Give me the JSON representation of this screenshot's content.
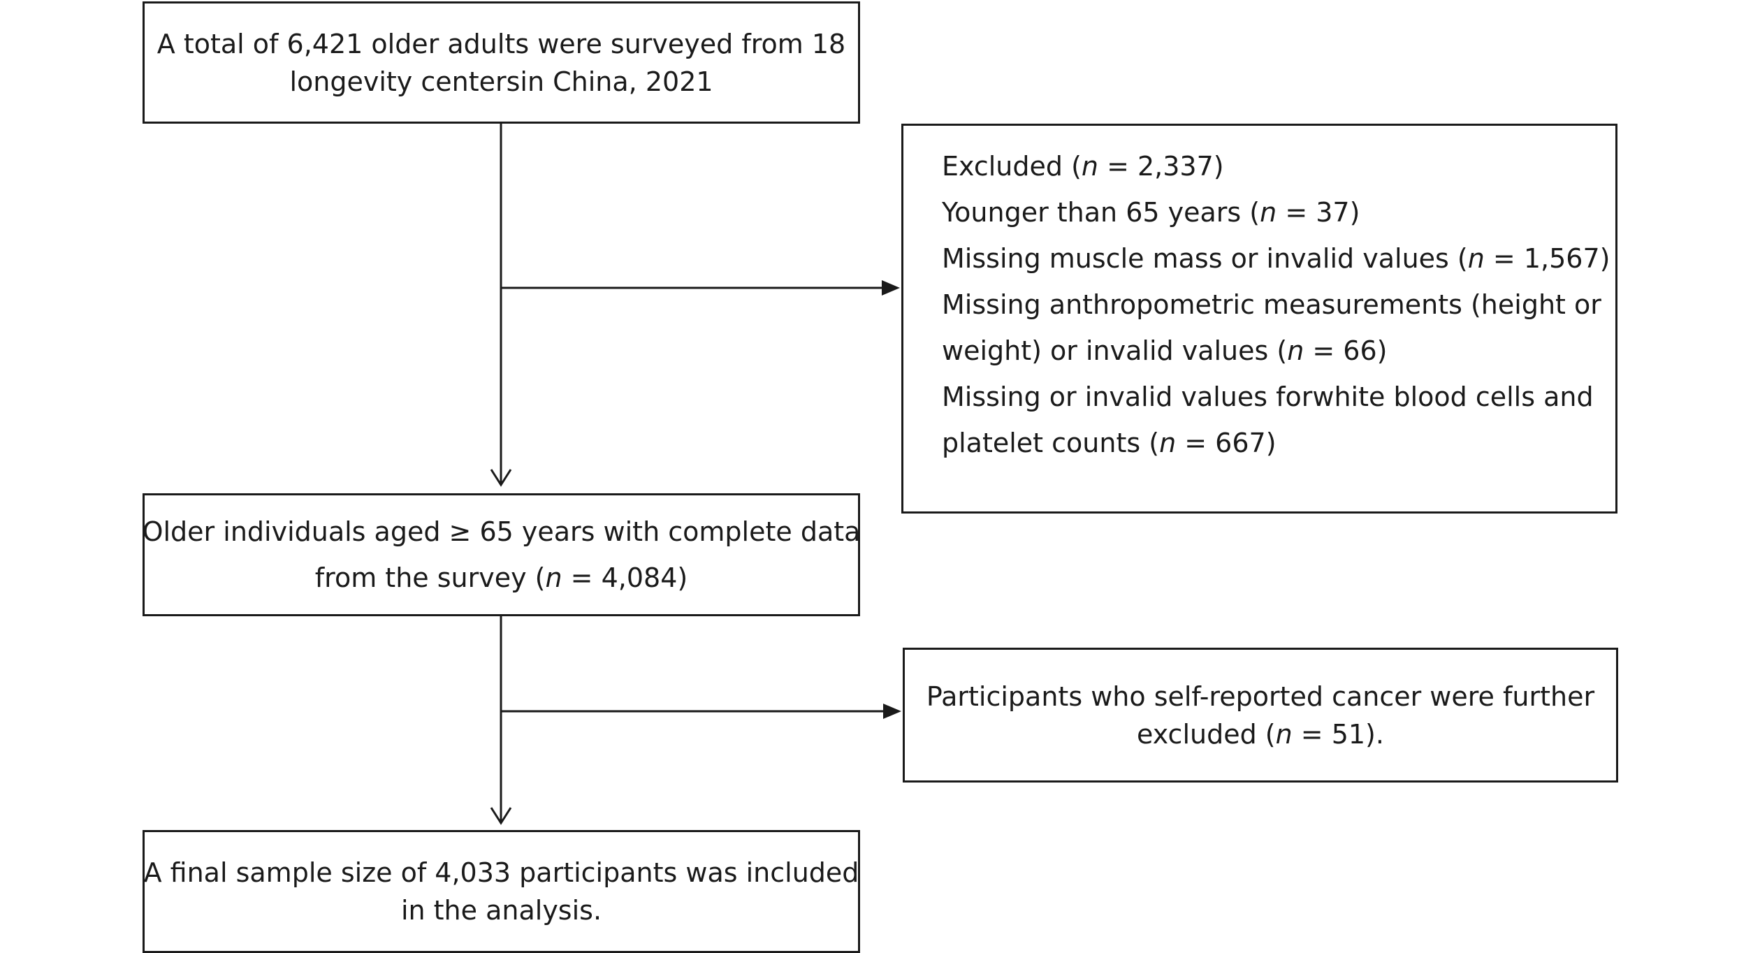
{
  "boxes": {
    "surveyed": {
      "lines": [
        "A total of 6,421 older adults were surveyed from 18",
        "longevity centersin China, 2021"
      ]
    },
    "excluded": {
      "lines": [
        {
          "pre": "Excluded (",
          "n": "n",
          "post": " = 2,337)"
        },
        {
          "pre": "Younger than 65 years (",
          "n": "n",
          "post": " = 37)"
        },
        {
          "pre": "Missing muscle mass or invalid values (",
          "n": "n",
          "post": " = 1,567)"
        },
        {
          "pre": "Missing anthropometric measurements (height or",
          "n": "",
          "post": ""
        },
        {
          "pre": "weight) or invalid values (",
          "n": "n",
          "post": " = 66)"
        },
        {
          "pre": "Missing or invalid values forwhite blood cells and",
          "n": "",
          "post": ""
        },
        {
          "pre": "platelet counts (",
          "n": "n",
          "post": " = 667)"
        }
      ]
    },
    "complete": {
      "line1": "Older individuals aged ≥ 65 years with complete data",
      "line2_pre": "from the survey (",
      "line2_n": "n",
      "line2_post": " = 4,084)"
    },
    "cancer": {
      "line1": "Participants who self-reported cancer were further",
      "line2_pre": "excluded (",
      "line2_n": "n",
      "line2_post": " = 51)."
    },
    "final": {
      "lines": [
        "A final sample size of 4,033 participants was included",
        "in the analysis."
      ]
    }
  }
}
